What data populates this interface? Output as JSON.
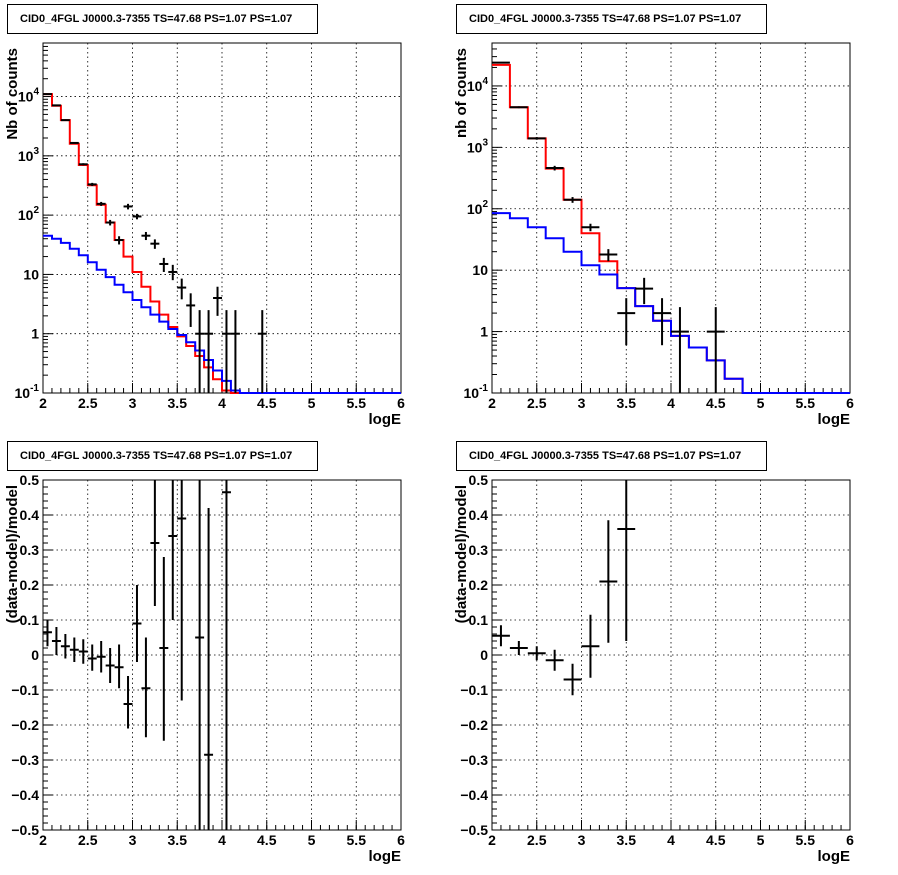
{
  "chart_data": [
    {
      "type": "line",
      "title": "CID0_4FGL J0000.3-7355 TS=47.68 PS=1.07 PS=1.07",
      "xlabel": "logE",
      "ylabel": "Nb of counts",
      "xlim": [
        2,
        6
      ],
      "ylim": [
        0.1,
        80000
      ],
      "ylog": true,
      "grid": true,
      "x_tick_labels": [
        "2",
        "2.5",
        "3",
        "3.5",
        "4",
        "4.5",
        "5",
        "5.5",
        "6"
      ],
      "y_tick_labels": [
        "10^-1",
        "1",
        "10",
        "10^2",
        "10^3",
        "10^4"
      ],
      "bin_edges": [
        2.0,
        2.1,
        2.2,
        2.3,
        2.4,
        2.5,
        2.6,
        2.7,
        2.8,
        2.9,
        3.0,
        3.1,
        3.2,
        3.3,
        3.4,
        3.5,
        3.6,
        3.7,
        3.8,
        3.9,
        4.0,
        4.1,
        4.2,
        4.3,
        4.4,
        4.5,
        4.6,
        4.7,
        4.8,
        4.9,
        5.0,
        5.1,
        5.2,
        5.3,
        5.4,
        5.5,
        5.6,
        5.7,
        5.8,
        5.9,
        6.0
      ],
      "series": [
        {
          "color": "#ff0000",
          "values": [
            11000,
            7000,
            4000,
            1600,
            700,
            320,
            150,
            75,
            38,
            20,
            11,
            6.2,
            3.5,
            2.1,
            1.3,
            0.9,
            0.62,
            0.42,
            0.27,
            0.17,
            0.11,
            0.1,
            0.1,
            0.1,
            0.1,
            0.1,
            0.1,
            0.1,
            0.1,
            0.1,
            0.1,
            0.1,
            0.1,
            0.1,
            0.1,
            0.1,
            0.1,
            0.1,
            0.1,
            0.1
          ]
        },
        {
          "color": "#0000ff",
          "values": [
            45,
            40,
            34,
            27,
            21,
            16,
            12,
            9,
            6.7,
            5,
            3.7,
            2.8,
            2.1,
            1.6,
            1.2,
            0.95,
            0.72,
            0.52,
            0.36,
            0.24,
            0.16,
            0.11,
            0.1,
            0.1,
            0.1,
            0.1,
            0.1,
            0.1,
            0.1,
            0.1,
            0.1,
            0.1,
            0.1,
            0.1,
            0.1,
            0.1,
            0.1,
            0.1,
            0.1,
            0.1
          ]
        }
      ],
      "points": [
        {
          "x": 2.05,
          "y": 11000,
          "ylo": 10800,
          "yhi": 11200
        },
        {
          "x": 2.15,
          "y": 7100,
          "ylo": 6950,
          "yhi": 7250
        },
        {
          "x": 2.25,
          "y": 4000,
          "ylo": 3880,
          "yhi": 4120
        },
        {
          "x": 2.35,
          "y": 1650,
          "ylo": 1610,
          "yhi": 1690
        },
        {
          "x": 2.45,
          "y": 720,
          "ylo": 690,
          "yhi": 750
        },
        {
          "x": 2.55,
          "y": 330,
          "ylo": 310,
          "yhi": 350
        },
        {
          "x": 2.65,
          "y": 155,
          "ylo": 143,
          "yhi": 167
        },
        {
          "x": 2.75,
          "y": 75,
          "ylo": 67,
          "yhi": 83
        },
        {
          "x": 2.85,
          "y": 38,
          "ylo": 32,
          "yhi": 44
        },
        {
          "x": 2.95,
          "y": 140,
          "ylo": 125,
          "yhi": 155
        },
        {
          "x": 3.05,
          "y": 95,
          "ylo": 85,
          "yhi": 105
        },
        {
          "x": 3.15,
          "y": 45,
          "ylo": 38,
          "yhi": 52
        },
        {
          "x": 3.25,
          "y": 33,
          "ylo": 27,
          "yhi": 39
        },
        {
          "x": 3.35,
          "y": 15,
          "ylo": 11,
          "yhi": 19
        },
        {
          "x": 3.45,
          "y": 11,
          "ylo": 8,
          "yhi": 14.5
        },
        {
          "x": 3.55,
          "y": 6,
          "ylo": 3.8,
          "yhi": 8.5
        },
        {
          "x": 3.65,
          "y": 3,
          "ylo": 1.3,
          "yhi": 4.8
        },
        {
          "x": 3.75,
          "y": 1,
          "ylo": 0.1,
          "yhi": 2.5
        },
        {
          "x": 3.85,
          "y": 1,
          "ylo": 0.1,
          "yhi": 2.5
        },
        {
          "x": 3.95,
          "y": 4,
          "ylo": 2,
          "yhi": 6.2
        },
        {
          "x": 4.05,
          "y": 1,
          "ylo": 0.1,
          "yhi": 2.5
        },
        {
          "x": 4.15,
          "y": 1,
          "ylo": 0.1,
          "yhi": 2.5
        },
        {
          "x": 4.45,
          "y": 1,
          "ylo": 0.1,
          "yhi": 2.5
        }
      ]
    },
    {
      "type": "line",
      "title": "CID0_4FGL J0000.3-7355 TS=47.68 PS=1.07 PS=1.07",
      "xlabel": "logE",
      "ylabel": "nb of counts",
      "xlim": [
        2,
        6
      ],
      "ylim": [
        0.1,
        50000
      ],
      "ylog": true,
      "grid": true,
      "x_tick_labels": [
        "2",
        "2.5",
        "3",
        "3.5",
        "4",
        "4.5",
        "5",
        "5.5",
        "6"
      ],
      "y_tick_labels": [
        "10^-1",
        "1",
        "10",
        "10^2",
        "10^3",
        "10^4"
      ],
      "bin_edges": [
        2.0,
        2.2,
        2.4,
        2.6,
        2.8,
        3.0,
        3.2,
        3.4,
        3.6,
        3.8,
        4.0,
        4.2,
        4.4,
        4.6,
        4.8,
        5.0,
        5.2,
        5.4,
        5.6,
        5.8,
        6.0
      ],
      "series": [
        {
          "color": "#ff0000",
          "values": [
            22000,
            4500,
            1400,
            450,
            140,
            40,
            14,
            5.1,
            2.6,
            1.5,
            0.85,
            0.55,
            0.34,
            0.17,
            0.1,
            0.1,
            0.1,
            0.1,
            0.1,
            0.1
          ]
        },
        {
          "color": "#0000ff",
          "values": [
            85,
            70,
            50,
            33,
            20,
            12,
            8.5,
            5.1,
            2.6,
            1.5,
            0.85,
            0.55,
            0.34,
            0.17,
            0.1,
            0.1,
            0.1,
            0.1,
            0.1,
            0.1
          ]
        }
      ],
      "points": [
        {
          "x": 2.1,
          "y": 24000,
          "ylo": 23500,
          "yhi": 24500
        },
        {
          "x": 2.3,
          "y": 4500,
          "ylo": 4350,
          "yhi": 4650
        },
        {
          "x": 2.5,
          "y": 1400,
          "ylo": 1330,
          "yhi": 1470
        },
        {
          "x": 2.7,
          "y": 460,
          "ylo": 420,
          "yhi": 500
        },
        {
          "x": 2.9,
          "y": 140,
          "ylo": 125,
          "yhi": 155
        },
        {
          "x": 3.1,
          "y": 50,
          "ylo": 43,
          "yhi": 57
        },
        {
          "x": 3.3,
          "y": 18,
          "ylo": 14,
          "yhi": 22
        },
        {
          "x": 3.5,
          "y": 2,
          "ylo": 0.6,
          "yhi": 3.5
        },
        {
          "x": 3.7,
          "y": 5,
          "ylo": 2.8,
          "yhi": 7.5
        },
        {
          "x": 3.9,
          "y": 2,
          "ylo": 0.6,
          "yhi": 3.5
        },
        {
          "x": 4.1,
          "y": 1,
          "ylo": 0.1,
          "yhi": 2.5
        },
        {
          "x": 4.5,
          "y": 1,
          "ylo": 0.1,
          "yhi": 2.5
        }
      ]
    },
    {
      "type": "scatter",
      "title": "CID0_4FGL J0000.3-7355 TS=47.68 PS=1.07 PS=1.07",
      "xlabel": "logE",
      "ylabel": "(data-model)/model",
      "xlim": [
        2,
        6
      ],
      "ylim": [
        -0.5,
        0.5
      ],
      "grid": true,
      "x_tick_labels": [
        "2",
        "2.5",
        "3",
        "3.5",
        "4",
        "4.5",
        "5",
        "5.5",
        "6"
      ],
      "y_tick_labels": [
        "-0.5",
        "-0.4",
        "-0.3",
        "-0.2",
        "-0.1",
        "0",
        "0.1",
        "0.2",
        "0.3",
        "0.4",
        "0.5"
      ],
      "points": [
        {
          "x": 2.05,
          "y": 0.065,
          "ylo": 0.025,
          "yhi": 0.1
        },
        {
          "x": 2.15,
          "y": 0.04,
          "ylo": 0.0,
          "yhi": 0.08
        },
        {
          "x": 2.25,
          "y": 0.025,
          "ylo": -0.01,
          "yhi": 0.06
        },
        {
          "x": 2.35,
          "y": 0.015,
          "ylo": -0.02,
          "yhi": 0.05
        },
        {
          "x": 2.45,
          "y": 0.01,
          "ylo": -0.025,
          "yhi": 0.045
        },
        {
          "x": 2.55,
          "y": -0.01,
          "ylo": -0.045,
          "yhi": 0.03
        },
        {
          "x": 2.65,
          "y": -0.005,
          "ylo": -0.05,
          "yhi": 0.04
        },
        {
          "x": 2.75,
          "y": -0.03,
          "ylo": -0.08,
          "yhi": 0.02
        },
        {
          "x": 2.85,
          "y": -0.035,
          "ylo": -0.095,
          "yhi": 0.03
        },
        {
          "x": 2.95,
          "y": -0.14,
          "ylo": -0.21,
          "yhi": -0.06
        },
        {
          "x": 3.05,
          "y": 0.09,
          "ylo": -0.02,
          "yhi": 0.2
        },
        {
          "x": 3.15,
          "y": -0.095,
          "ylo": -0.235,
          "yhi": 0.05
        },
        {
          "x": 3.25,
          "y": 0.32,
          "ylo": 0.14,
          "yhi": 0.5
        },
        {
          "x": 3.35,
          "y": 0.02,
          "ylo": -0.245,
          "yhi": 0.28
        },
        {
          "x": 3.45,
          "y": 0.34,
          "ylo": 0.1,
          "yhi": 0.5
        },
        {
          "x": 3.55,
          "y": 0.39,
          "ylo": -0.13,
          "yhi": 0.5
        },
        {
          "x": 3.75,
          "y": 0.05,
          "ylo": -0.5,
          "yhi": 0.5
        },
        {
          "x": 3.85,
          "y": -0.285,
          "ylo": -0.5,
          "yhi": 0.42
        },
        {
          "x": 4.05,
          "y": 0.465,
          "ylo": -0.5,
          "yhi": 0.5
        }
      ]
    },
    {
      "type": "scatter",
      "title": "CID0_4FGL J0000.3-7355 TS=47.68 PS=1.07 PS=1.07",
      "xlabel": "logE",
      "ylabel": "(data-model)/model",
      "xlim": [
        2,
        6
      ],
      "ylim": [
        -0.5,
        0.5
      ],
      "grid": true,
      "x_tick_labels": [
        "2",
        "2.5",
        "3",
        "3.5",
        "4",
        "4.5",
        "5",
        "5.5",
        "6"
      ],
      "y_tick_labels": [
        "-0.5",
        "-0.4",
        "-0.3",
        "-0.2",
        "-0.1",
        "0",
        "0.1",
        "0.2",
        "0.3",
        "0.4",
        "0.5"
      ],
      "points": [
        {
          "x": 2.1,
          "y": 0.055,
          "ylo": 0.025,
          "yhi": 0.085
        },
        {
          "x": 2.3,
          "y": 0.02,
          "ylo": 0.0,
          "yhi": 0.04
        },
        {
          "x": 2.5,
          "y": 0.005,
          "ylo": -0.015,
          "yhi": 0.025
        },
        {
          "x": 2.7,
          "y": -0.015,
          "ylo": -0.045,
          "yhi": 0.015
        },
        {
          "x": 2.9,
          "y": -0.07,
          "ylo": -0.115,
          "yhi": -0.025
        },
        {
          "x": 3.1,
          "y": 0.025,
          "ylo": -0.065,
          "yhi": 0.115
        },
        {
          "x": 3.3,
          "y": 0.21,
          "ylo": 0.035,
          "yhi": 0.385
        },
        {
          "x": 3.5,
          "y": 0.36,
          "ylo": 0.04,
          "yhi": 0.5
        }
      ]
    }
  ]
}
